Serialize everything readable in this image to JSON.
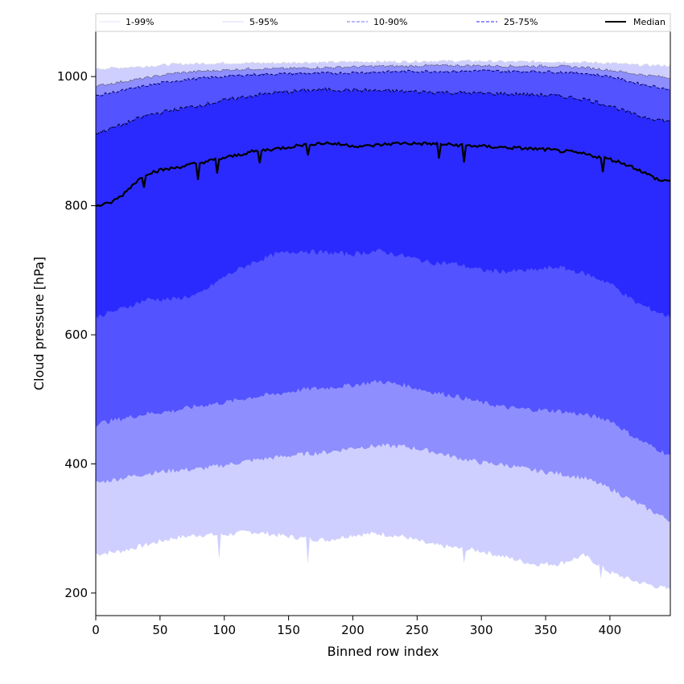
{
  "chart_data": {
    "type": "area",
    "xlabel": "Binned row index",
    "ylabel": "Cloud pressure [hPa]",
    "xlim": [
      0,
      447
    ],
    "ylim": [
      165,
      1070
    ],
    "xticks": [
      0,
      50,
      100,
      150,
      200,
      250,
      300,
      350,
      400
    ],
    "yticks": [
      200,
      400,
      600,
      800,
      1000
    ],
    "grid": false,
    "legend_position": "top",
    "legend": [
      {
        "label": "1-99%",
        "color": "#e8e8ff",
        "style": "solid"
      },
      {
        "label": "5-95%",
        "color": "#c0c0ff",
        "style": "dotted"
      },
      {
        "label": "10-90%",
        "color": "#8c8cff",
        "style": "dashed"
      },
      {
        "label": "25-75%",
        "color": "#5555ff",
        "style": "dashed"
      },
      {
        "label": "Median",
        "color": "#000000",
        "style": "solid"
      }
    ],
    "bands": [
      {
        "name": "1-99%",
        "fill": "#cfcfff",
        "x": [
          0,
          20,
          40,
          60,
          80,
          100,
          120,
          140,
          160,
          180,
          200,
          220,
          240,
          260,
          280,
          300,
          320,
          340,
          360,
          380,
          400,
          420,
          447
        ],
        "lower": [
          260,
          265,
          275,
          285,
          290,
          290,
          295,
          290,
          285,
          282,
          290,
          292,
          287,
          275,
          270,
          265,
          255,
          245,
          245,
          258,
          232,
          218,
          205
        ],
        "upper": [
          1012,
          1014,
          1016,
          1019,
          1020,
          1021,
          1021,
          1021,
          1022,
          1022,
          1023,
          1023,
          1023,
          1024,
          1024,
          1024,
          1023,
          1023,
          1023,
          1022,
          1021,
          1018,
          1017
        ]
      },
      {
        "name": "5-95%",
        "fill": "#8e8eff",
        "x": [
          0,
          20,
          40,
          60,
          80,
          100,
          120,
          140,
          160,
          180,
          200,
          220,
          240,
          260,
          280,
          300,
          320,
          340,
          360,
          380,
          400,
          420,
          447
        ],
        "lower": [
          370,
          378,
          385,
          390,
          392,
          398,
          405,
          410,
          415,
          418,
          425,
          428,
          427,
          420,
          410,
          402,
          398,
          390,
          385,
          378,
          362,
          340,
          312
        ],
        "upper": [
          985,
          992,
          998,
          1005,
          1008,
          1010,
          1012,
          1012,
          1013,
          1014,
          1015,
          1016,
          1016,
          1017,
          1017,
          1017,
          1016,
          1016,
          1016,
          1014,
          1010,
          1004,
          998
        ]
      },
      {
        "name": "10-90%",
        "fill": "#5353ff",
        "x": [
          0,
          20,
          40,
          60,
          80,
          100,
          120,
          140,
          160,
          180,
          200,
          220,
          240,
          260,
          280,
          300,
          320,
          340,
          360,
          380,
          400,
          420,
          447
        ],
        "lower": [
          462,
          470,
          478,
          482,
          490,
          495,
          503,
          508,
          515,
          518,
          522,
          528,
          522,
          512,
          505,
          495,
          487,
          484,
          482,
          476,
          468,
          440,
          413
        ],
        "upper": [
          970,
          978,
          986,
          993,
          997,
          1000,
          1003,
          1004,
          1005,
          1005,
          1006,
          1007,
          1008,
          1008,
          1008,
          1009,
          1008,
          1008,
          1007,
          1005,
          1000,
          990,
          980
        ]
      },
      {
        "name": "25-75%",
        "fill": "#2a2aff",
        "x": [
          0,
          20,
          40,
          60,
          80,
          100,
          120,
          140,
          160,
          180,
          200,
          220,
          240,
          260,
          280,
          300,
          320,
          340,
          360,
          380,
          400,
          420,
          447
        ],
        "lower": [
          628,
          640,
          655,
          655,
          662,
          690,
          710,
          725,
          730,
          727,
          725,
          730,
          722,
          712,
          710,
          700,
          698,
          700,
          705,
          695,
          680,
          650,
          627
        ],
        "upper": [
          912,
          925,
          940,
          948,
          955,
          963,
          970,
          975,
          978,
          980,
          979,
          978,
          977,
          976,
          975,
          974,
          973,
          972,
          970,
          965,
          955,
          940,
          930
        ]
      }
    ],
    "series": [
      {
        "name": "Median",
        "color": "#000000",
        "x": [
          0,
          10,
          20,
          30,
          40,
          50,
          60,
          70,
          80,
          90,
          100,
          110,
          120,
          130,
          140,
          150,
          160,
          170,
          180,
          190,
          200,
          210,
          220,
          230,
          240,
          250,
          260,
          270,
          280,
          290,
          300,
          310,
          320,
          330,
          340,
          350,
          360,
          370,
          380,
          390,
          400,
          410,
          420,
          430,
          440,
          447
        ],
        "values": [
          800,
          803,
          815,
          835,
          850,
          855,
          858,
          862,
          866,
          870,
          874,
          878,
          883,
          886,
          888,
          891,
          894,
          896,
          897,
          895,
          893,
          892,
          894,
          896,
          897,
          896,
          896,
          895,
          894,
          893,
          892,
          891,
          890,
          889,
          888,
          887,
          885,
          883,
          880,
          876,
          872,
          866,
          858,
          848,
          838,
          840
        ]
      }
    ],
    "spikes": [
      {
        "band": "median",
        "x": 38,
        "y": 828
      },
      {
        "band": "median",
        "x": 80,
        "y": 840
      },
      {
        "band": "median",
        "x": 95,
        "y": 850
      },
      {
        "band": "median",
        "x": 128,
        "y": 866
      },
      {
        "band": "median",
        "x": 165,
        "y": 878
      },
      {
        "band": "median",
        "x": 267,
        "y": 873
      },
      {
        "band": "median",
        "x": 286,
        "y": 867
      },
      {
        "band": "median",
        "x": 395,
        "y": 852
      },
      {
        "band": "p1",
        "x": 96,
        "y": 252
      },
      {
        "band": "p1",
        "x": 165,
        "y": 245
      },
      {
        "band": "p1",
        "x": 286,
        "y": 246
      },
      {
        "band": "p1",
        "x": 393,
        "y": 222
      }
    ]
  }
}
